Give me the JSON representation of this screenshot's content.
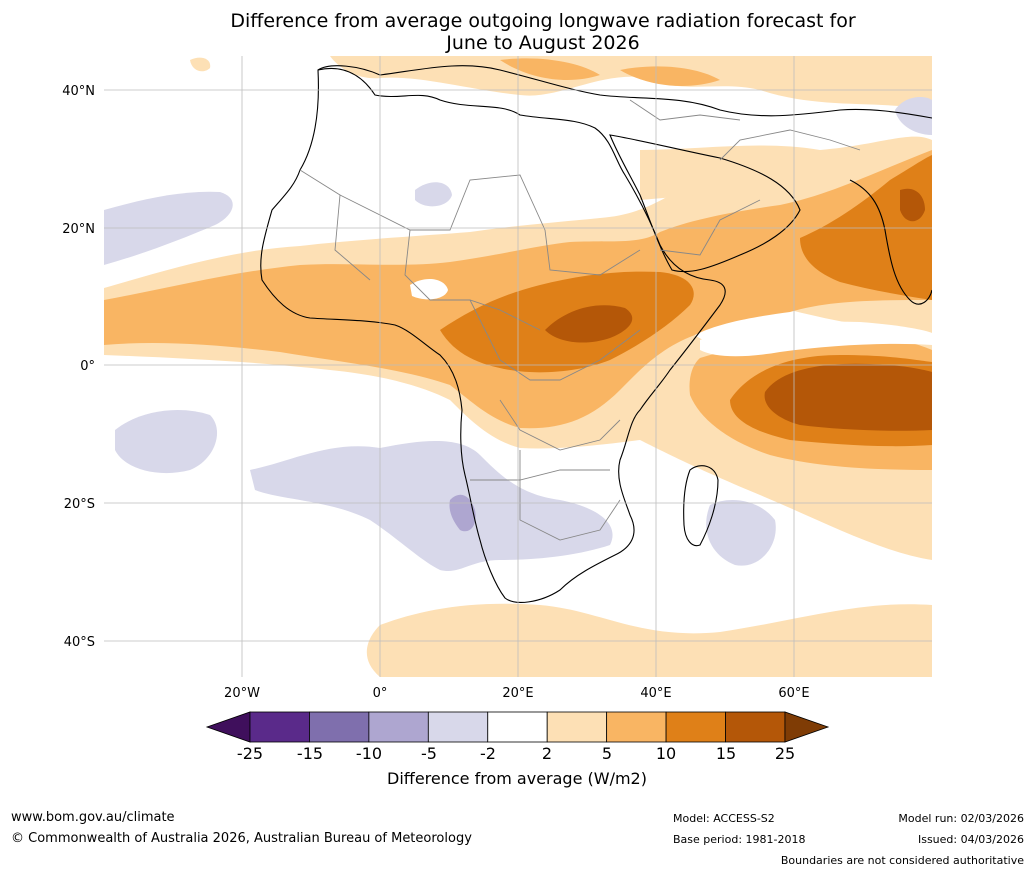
{
  "title_line1": "Difference from average outgoing longwave radiation forecast for",
  "title_line2": "June to August 2026",
  "map": {
    "lat_labels": [
      "40°N",
      "20°N",
      "0°",
      "20°S",
      "40°S"
    ],
    "lon_labels": [
      "20°W",
      "0°",
      "20°E",
      "40°E",
      "60°E"
    ]
  },
  "colorbar": {
    "ticks": [
      "-25",
      "-15",
      "-10",
      "-5",
      "-2",
      "2",
      "5",
      "10",
      "15",
      "25"
    ],
    "colors": [
      "#3f0f5c",
      "#5a2a8a",
      "#7f6fad",
      "#aea6d0",
      "#d8d8ea",
      "#ffffff",
      "#fde0b5",
      "#f9b563",
      "#df8018",
      "#b45708",
      "#7f3c05"
    ],
    "title": "Difference from average (W/m2)"
  },
  "footer": {
    "url": "www.bom.gov.au/climate",
    "copyright": "© Commonwealth of Australia 2026, Australian Bureau of Meteorology",
    "model": "Model: ACCESS-S2",
    "base_period": "Base period: 1981-2018",
    "model_run": "Model run: 02/03/2026",
    "issued": "Issued: 04/03/2026",
    "disclaimer": "Boundaries are not considered authoritative"
  }
}
